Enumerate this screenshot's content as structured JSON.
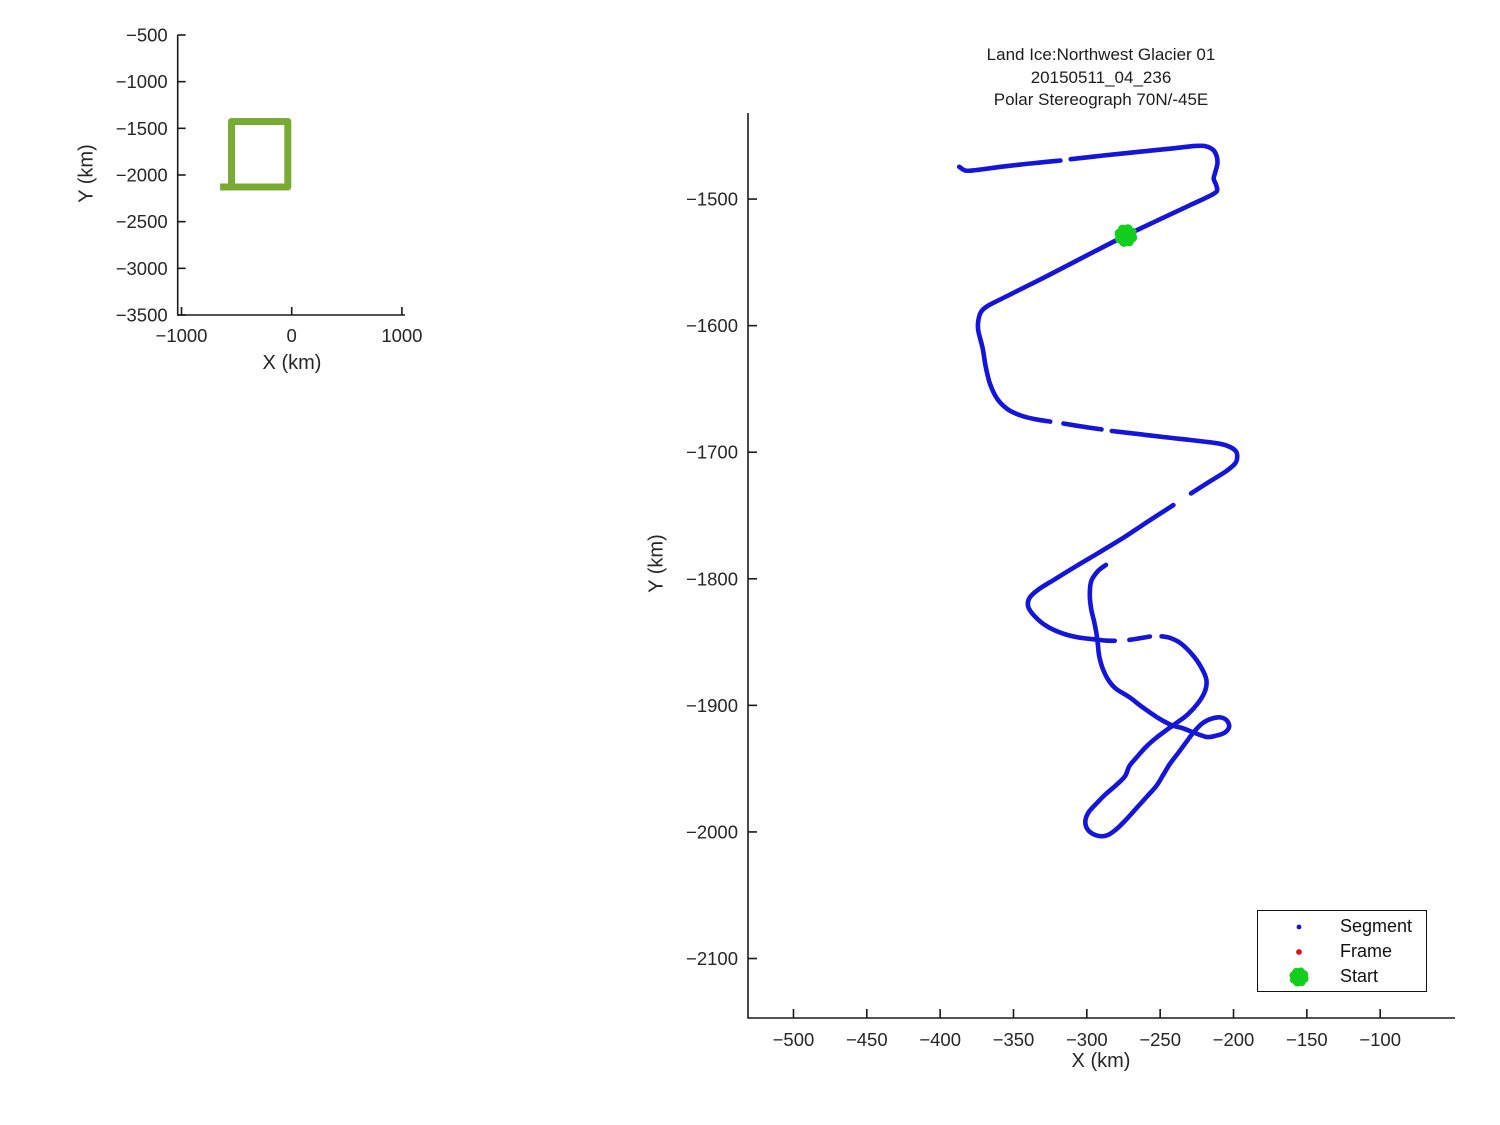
{
  "figure": {
    "background": "#ffffff",
    "spine_color": "#1a1a1a",
    "tick_font_px": 18.5,
    "text_color": "#262626"
  },
  "chart_data": [
    {
      "id": "overview",
      "type": "line",
      "xlabel": "X (km)",
      "ylabel": "Y (km)",
      "xlim": [
        -1034.5,
        1028.1
      ],
      "ylim": [
        -3500,
        -500
      ],
      "xticks": [
        -1000,
        0,
        1000
      ],
      "yticks": [
        -500,
        -1000,
        -1500,
        -2000,
        -2500,
        -3000,
        -3500
      ],
      "grid": false,
      "series": [
        {
          "name": "track-extent-box",
          "color": "#79AB33",
          "width": 7,
          "smooth": false,
          "points": [
            [
              -650,
              -2129
            ],
            [
              -35,
              -2129
            ],
            [
              -35,
              -1427
            ],
            [
              -546,
              -1427
            ],
            [
              -546,
              -2129
            ]
          ]
        }
      ]
    },
    {
      "id": "main",
      "type": "line",
      "title": [
        "Land Ice:Northwest Glacier 01",
        "20150511_04_236",
        "Polar Stereograph 70N/-45E"
      ],
      "xlabel": "X (km)",
      "ylabel": "Y (km)",
      "xlim": [
        -531,
        -49
      ],
      "ylim": [
        -2147,
        -1432
      ],
      "xticks": [
        -500,
        -450,
        -400,
        -350,
        -300,
        -250,
        -200,
        -150,
        -100
      ],
      "yticks": [
        -1500,
        -1600,
        -1700,
        -1800,
        -1900,
        -2000,
        -2100
      ],
      "grid": false,
      "legend": [
        {
          "label": "Segment",
          "marker": "dot",
          "color": "#1414DB"
        },
        {
          "label": "Frame",
          "marker": "dot",
          "color": "#DD1414"
        },
        {
          "label": "Start",
          "marker": "flower",
          "color": "#14CE1E"
        }
      ],
      "legend_position": "lower right",
      "segment_color": "#1414DB",
      "segment_width": 4.6,
      "frame_point": [
        -268.3,
        -1525.5
      ],
      "start_point": [
        -273.4,
        -1528.8
      ],
      "track_segments": [
        [
          [
            -387,
            -1474.5
          ],
          [
            -382.5,
            -1477.5
          ],
          [
            -375,
            -1477
          ],
          [
            -355,
            -1474
          ],
          [
            -335,
            -1471.5
          ],
          [
            -318,
            -1469.5
          ]
        ],
        [
          [
            -311,
            -1468.5
          ],
          [
            -288,
            -1465.5
          ],
          [
            -263,
            -1462.5
          ],
          [
            -240,
            -1459.8
          ],
          [
            -226,
            -1458
          ],
          [
            -219,
            -1458.2
          ],
          [
            -214,
            -1461
          ],
          [
            -211.5,
            -1466
          ],
          [
            -211,
            -1472
          ],
          [
            -212.5,
            -1479
          ],
          [
            -213.5,
            -1484
          ],
          [
            -211.8,
            -1489
          ],
          [
            -211.5,
            -1494
          ],
          [
            -218,
            -1498.5
          ],
          [
            -230,
            -1505
          ],
          [
            -252,
            -1517
          ],
          [
            -273.4,
            -1528.8
          ],
          [
            -300,
            -1544.5
          ],
          [
            -330,
            -1562.5
          ],
          [
            -355,
            -1577
          ],
          [
            -367,
            -1584
          ],
          [
            -372,
            -1589
          ],
          [
            -374,
            -1596
          ],
          [
            -374,
            -1604
          ],
          [
            -371,
            -1618
          ],
          [
            -369,
            -1632
          ],
          [
            -366,
            -1646
          ],
          [
            -361,
            -1658
          ],
          [
            -354,
            -1666
          ],
          [
            -345,
            -1671
          ],
          [
            -335,
            -1674
          ],
          [
            -325,
            -1675.8
          ]
        ],
        [
          [
            -316,
            -1677.3
          ],
          [
            -304,
            -1679.6
          ],
          [
            -290,
            -1682
          ]
        ],
        [
          [
            -283,
            -1683.2
          ],
          [
            -270,
            -1685
          ],
          [
            -250,
            -1687.7
          ],
          [
            -230,
            -1690.3
          ],
          [
            -213,
            -1692.6
          ],
          [
            -204,
            -1695
          ],
          [
            -198.5,
            -1699
          ],
          [
            -197.5,
            -1704
          ],
          [
            -199,
            -1709
          ],
          [
            -205,
            -1715
          ],
          [
            -216,
            -1723
          ],
          [
            -229,
            -1732.5
          ]
        ],
        [
          [
            -241,
            -1741.8
          ],
          [
            -258,
            -1754.5
          ],
          [
            -275,
            -1767.5
          ],
          [
            -292,
            -1779.5
          ],
          [
            -308,
            -1790.5
          ],
          [
            -322,
            -1800.5
          ],
          [
            -333,
            -1808.5
          ],
          [
            -339,
            -1815
          ],
          [
            -340,
            -1822
          ],
          [
            -336,
            -1829
          ],
          [
            -328,
            -1837
          ],
          [
            -317,
            -1843
          ],
          [
            -306,
            -1846.3
          ],
          [
            -295,
            -1847.8
          ],
          [
            -287,
            -1848.8
          ],
          [
            -281,
            -1849
          ]
        ],
        [
          [
            -271,
            -1848.3
          ],
          [
            -263,
            -1846.8
          ],
          [
            -257,
            -1845.6
          ]
        ],
        [
          [
            -249,
            -1845.4
          ],
          [
            -243,
            -1846.8
          ],
          [
            -236,
            -1851
          ],
          [
            -228,
            -1860
          ],
          [
            -222,
            -1870
          ],
          [
            -218.5,
            -1880
          ],
          [
            -219.5,
            -1889
          ],
          [
            -224,
            -1898
          ],
          [
            -231,
            -1907
          ],
          [
            -239,
            -1914
          ],
          [
            -244.5,
            -1918.5
          ],
          [
            -252,
            -1925
          ],
          [
            -259,
            -1932
          ],
          [
            -266,
            -1941
          ],
          [
            -271,
            -1948
          ],
          [
            -274,
            -1956
          ],
          [
            -280,
            -1963
          ],
          [
            -287,
            -1970
          ],
          [
            -293,
            -1977
          ],
          [
            -298.5,
            -1984
          ],
          [
            -301,
            -1991
          ],
          [
            -299.5,
            -1998
          ],
          [
            -294,
            -2002.5
          ],
          [
            -287,
            -2003
          ],
          [
            -280.5,
            -1998.5
          ],
          [
            -273,
            -1990
          ],
          [
            -266,
            -1981
          ],
          [
            -259,
            -1972
          ],
          [
            -252.5,
            -1963.5
          ],
          [
            -248,
            -1955
          ],
          [
            -243.5,
            -1946.5
          ],
          [
            -238,
            -1938
          ],
          [
            -232.5,
            -1929.5
          ],
          [
            -227,
            -1921
          ],
          [
            -221,
            -1914
          ],
          [
            -215,
            -1910.5
          ],
          [
            -209,
            -1909.5
          ],
          [
            -204.5,
            -1912
          ],
          [
            -203,
            -1917
          ],
          [
            -206,
            -1921.5
          ],
          [
            -212,
            -1924
          ],
          [
            -218,
            -1925
          ],
          [
            -227,
            -1921.5
          ],
          [
            -235,
            -1918
          ],
          [
            -242.5,
            -1915.5
          ],
          [
            -252,
            -1909.5
          ],
          [
            -262,
            -1901.5
          ],
          [
            -271,
            -1893.5
          ],
          [
            -280,
            -1887
          ],
          [
            -285,
            -1880.5
          ],
          [
            -289,
            -1871.5
          ],
          [
            -291.5,
            -1861.5
          ],
          [
            -292.5,
            -1851.5
          ],
          [
            -293.5,
            -1843
          ],
          [
            -295,
            -1834
          ],
          [
            -297,
            -1824
          ],
          [
            -298,
            -1813
          ],
          [
            -297,
            -1802
          ],
          [
            -292.5,
            -1794
          ],
          [
            -287,
            -1789
          ]
        ]
      ]
    }
  ]
}
